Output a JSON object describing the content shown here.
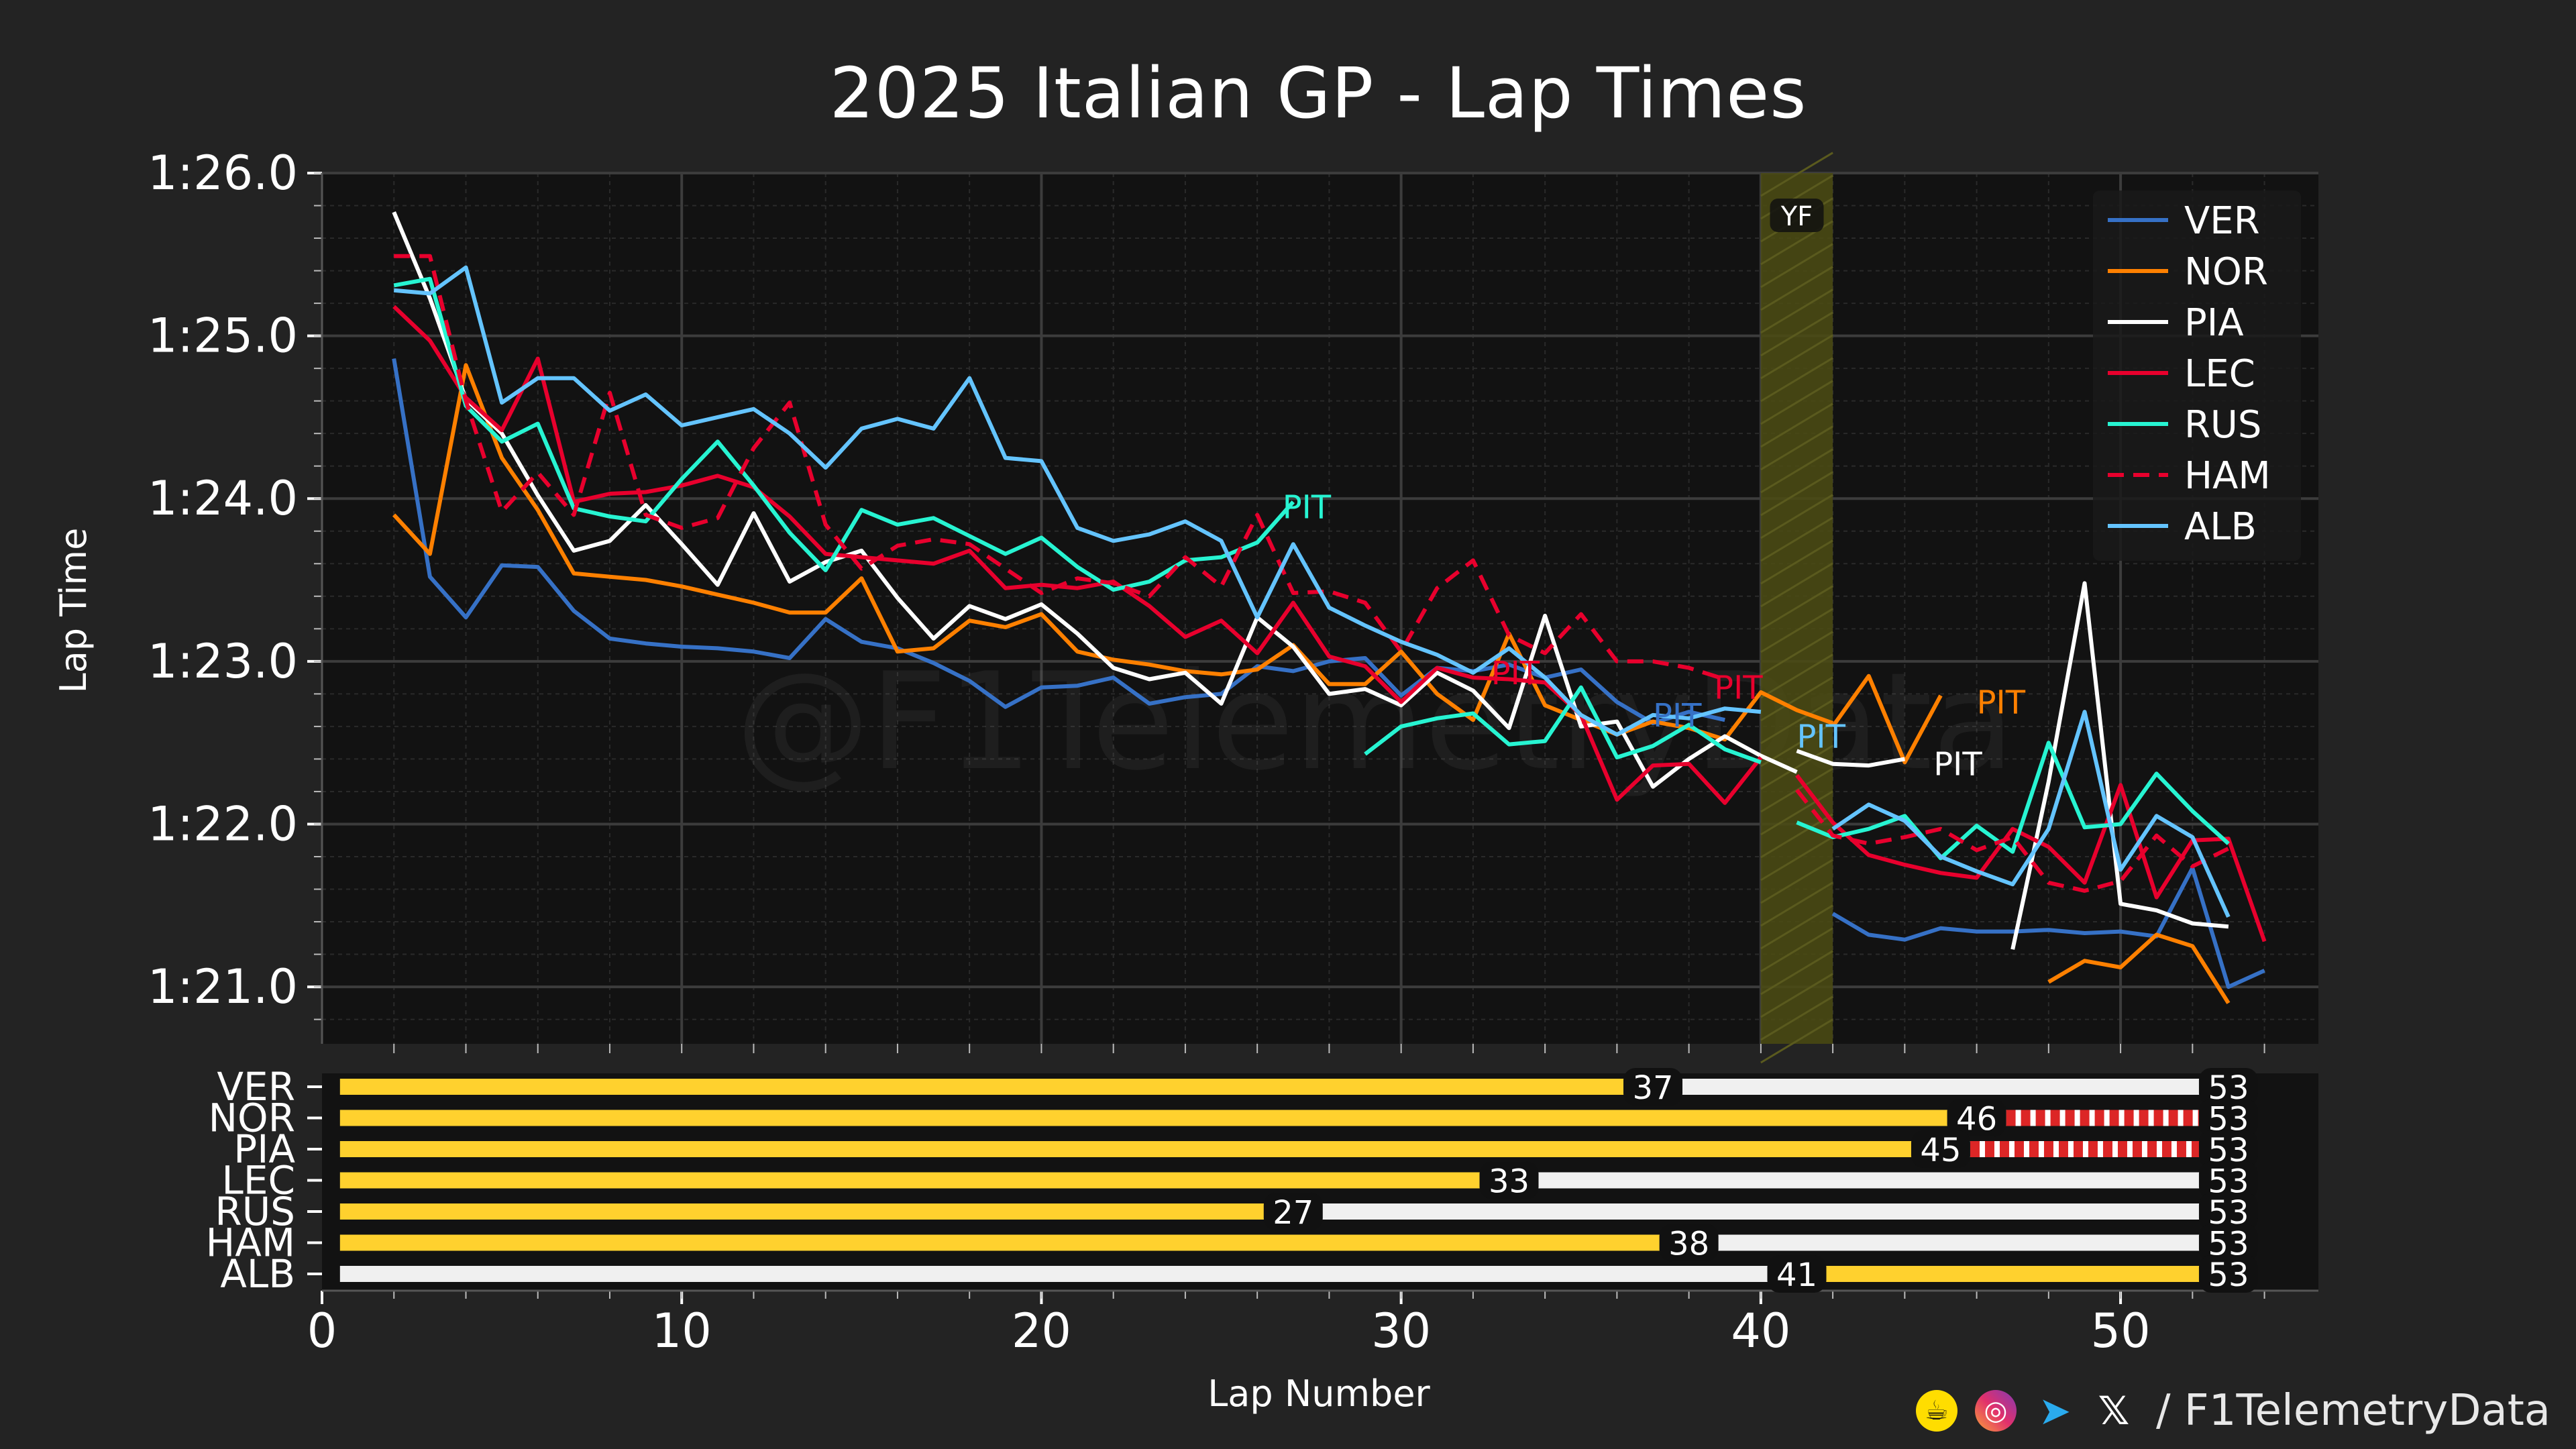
{
  "title": "2025 Italian GP - Lap Times",
  "footer": {
    "icons": [
      "buymeacoffee-icon",
      "instagram-icon",
      "telegram-icon",
      "x-icon"
    ],
    "handle": "/ F1TelemetryData"
  },
  "watermark": "@F1TelemetryData",
  "colors": {
    "background": "#232323",
    "plot_bg": "#121212",
    "VER": "#3671C6",
    "NOR": "#FF8000",
    "PIA": "#FFFFFF",
    "LEC": "#E8002D",
    "RUS": "#27F4D2",
    "HAM": "#E8002D",
    "ALB": "#64C4FF",
    "yellow_flag": "#4a4a14",
    "stint_a": "#FFD12E",
    "stint_b": "#F0F0F0",
    "stint_c": "#DC2626"
  },
  "chart_data": [
    {
      "type": "line",
      "title": "2025 Italian GP - Lap Times",
      "xlabel": "Lap Number",
      "ylabel": "Lap Time",
      "xlim": [
        0,
        55.5
      ],
      "ylim": [
        80.65,
        86.0
      ],
      "yticks": [
        {
          "value": 81,
          "label": "1:21.0"
        },
        {
          "value": 82,
          "label": "1:22.0"
        },
        {
          "value": 83,
          "label": "1:23.0"
        },
        {
          "value": 84,
          "label": "1:24.0"
        },
        {
          "value": 85,
          "label": "1:25.0"
        },
        {
          "value": 86,
          "label": "1:26.0"
        }
      ],
      "xticks": [
        0,
        10,
        20,
        30,
        40,
        50
      ],
      "grid": true,
      "legend_position": "top-right",
      "shaded_regions": [
        {
          "label": "YF",
          "from": 40,
          "to": 42
        }
      ],
      "series": [
        {
          "name": "VER",
          "style": "solid",
          "segments": [
            {
              "start": 2,
              "values": [
                84.86,
                83.52,
                83.27,
                83.59,
                83.58,
                83.31,
                83.14,
                83.11,
                83.09,
                83.08,
                83.06,
                83.02,
                83.26,
                83.12,
                83.08,
                82.99,
                82.88,
                82.72,
                82.84,
                82.85,
                82.9,
                82.74,
                82.78,
                82.8,
                82.97,
                82.94,
                83.0,
                83.02,
                82.79,
                82.96,
                82.94,
                82.98,
                82.9,
                82.95,
                82.75,
                82.62,
                82.69,
                82.64
              ]
            },
            {
              "start": 42,
              "values": [
                81.45,
                81.32,
                81.29,
                81.36,
                81.34,
                81.34,
                81.35,
                81.33,
                81.34,
                81.31,
                81.73,
                81.0,
                81.1
              ]
            }
          ]
        },
        {
          "name": "NOR",
          "style": "solid",
          "segments": [
            {
              "start": 2,
              "values": [
                83.9,
                83.66,
                84.82,
                84.25,
                83.93,
                83.54,
                83.52,
                83.5,
                83.46,
                83.41,
                83.36,
                83.3,
                83.3,
                83.51,
                83.06,
                83.08,
                83.25,
                83.21,
                83.29,
                83.06,
                83.01,
                82.98,
                82.94,
                82.92,
                82.95,
                83.1,
                82.86,
                82.86,
                83.06,
                82.8,
                82.64,
                83.17,
                82.73,
                82.64,
                82.55,
                82.63,
                82.59,
                82.52,
                82.81,
                82.7,
                82.62
              ]
            },
            {
              "start": 42,
              "values": [
                82.6,
                82.91,
                82.38,
                82.79
              ]
            },
            {
              "start": 48,
              "values": [
                81.03,
                81.16,
                81.12,
                81.32,
                81.25,
                80.9
              ]
            }
          ]
        },
        {
          "name": "PIA",
          "style": "solid",
          "segments": [
            {
              "start": 2,
              "values": [
                85.76,
                85.23,
                84.61,
                84.4,
                84.02,
                83.68,
                83.74,
                83.96,
                83.72,
                83.47,
                83.91,
                83.49,
                83.61,
                83.68,
                83.39,
                83.14,
                83.34,
                83.26,
                83.35,
                83.17,
                82.96,
                82.89,
                82.93,
                82.74,
                83.27,
                83.09,
                82.8,
                82.83,
                82.73,
                82.93,
                82.82,
                82.59,
                83.28,
                82.6,
                82.63,
                82.23,
                82.4,
                82.54,
                82.42,
                82.32
              ]
            },
            {
              "start": 41,
              "values": [
                82.45,
                82.37,
                82.36,
                82.4
              ]
            },
            {
              "start": 47,
              "values": [
                81.23,
                82.26,
                83.48,
                81.51,
                81.47,
                81.39,
                81.37
              ]
            }
          ]
        },
        {
          "name": "LEC",
          "style": "solid",
          "segments": [
            {
              "start": 2,
              "values": [
                85.18,
                84.97,
                84.62,
                84.42,
                84.86,
                83.98,
                84.03,
                84.04,
                84.08,
                84.14,
                84.07,
                83.89,
                83.66,
                83.64,
                83.62,
                83.6,
                83.68,
                83.45,
                83.47,
                83.45,
                83.49,
                83.34,
                83.15,
                83.25,
                83.05,
                83.36,
                83.03,
                82.97,
                82.75,
                82.96,
                82.9,
                82.89,
                82.87,
                82.67,
                82.15,
                82.36,
                82.37,
                82.13,
                82.41
              ]
            },
            {
              "start": 41,
              "values": [
                82.3,
                82.01,
                81.81,
                81.75,
                81.7,
                81.67,
                81.97,
                81.86,
                81.64,
                82.24,
                81.55,
                81.9,
                81.91,
                81.28
              ]
            }
          ]
        },
        {
          "name": "RUS",
          "style": "solid",
          "segments": [
            {
              "start": 2,
              "values": [
                85.31,
                85.35,
                84.57,
                84.35,
                84.46,
                83.94,
                83.89,
                83.86,
                84.12,
                84.35,
                84.08,
                83.79,
                83.56,
                83.93,
                83.84,
                83.88,
                83.77,
                83.66,
                83.76,
                83.58,
                83.44,
                83.49,
                83.62,
                83.64,
                83.73,
                83.98
              ]
            },
            {
              "start": 29,
              "values": [
                82.43,
                82.6,
                82.65,
                82.68,
                82.49,
                82.51,
                82.84,
                82.41,
                82.48,
                82.61,
                82.46,
                82.38
              ]
            },
            {
              "start": 41,
              "values": [
                82.01,
                81.92,
                81.97,
                82.05,
                81.79,
                81.99,
                81.83,
                82.5,
                81.98,
                82.0,
                82.31,
                82.08,
                81.88
              ]
            }
          ]
        },
        {
          "name": "HAM",
          "style": "dashed",
          "segments": [
            {
              "start": 2,
              "values": [
                85.49,
                85.49,
                84.6,
                83.92,
                84.16,
                83.9,
                84.65,
                83.9,
                83.82,
                83.88,
                84.31,
                84.59,
                83.84,
                83.57,
                83.71,
                83.75,
                83.72,
                83.57,
                83.42,
                83.51,
                83.48,
                83.4,
                83.64,
                83.46,
                83.9,
                83.42,
                83.43,
                83.36,
                83.06,
                83.45,
                83.62,
                83.16,
                83.05,
                83.29,
                83.0,
                83.0,
                82.96,
                82.89
              ]
            },
            {
              "start": 41,
              "values": [
                82.21,
                81.93,
                81.88,
                81.92,
                81.97,
                81.84,
                81.92,
                81.64,
                81.59,
                81.65,
                81.93,
                81.74,
                81.85
              ]
            }
          ]
        },
        {
          "name": "ALB",
          "style": "solid",
          "segments": [
            {
              "start": 2,
              "values": [
                85.28,
                85.26,
                85.42,
                84.59,
                84.74,
                84.74,
                84.54,
                84.64,
                84.45,
                84.5,
                84.55,
                84.4,
                84.19,
                84.43,
                84.49,
                84.43,
                84.74,
                84.25,
                84.23,
                83.82,
                83.74,
                83.78,
                83.86,
                83.74,
                83.27,
                83.72,
                83.33,
                83.22,
                83.12,
                83.04,
                82.93,
                83.08,
                82.9,
                82.67,
                82.55,
                82.67,
                82.65,
                82.71,
                82.69
              ]
            },
            {
              "start": 42,
              "values": [
                81.97,
                82.12,
                82.02,
                81.8,
                81.71,
                81.63,
                81.97,
                82.69,
                81.72,
                82.05,
                81.92,
                81.43
              ]
            }
          ]
        }
      ],
      "annotations": [
        {
          "text": "PIT",
          "driver": "RUS",
          "x": 26.7,
          "y": 83.88
        },
        {
          "text": "PIT",
          "driver": "LEC",
          "x": 32.5,
          "y": 82.86
        },
        {
          "text": "PIT",
          "driver": "LEC",
          "x": 38.7,
          "y": 82.77
        },
        {
          "text": "PIT",
          "driver": "VER",
          "x": 37.0,
          "y": 82.6
        },
        {
          "text": "PIT",
          "driver": "ALB",
          "x": 41.0,
          "y": 82.47
        },
        {
          "text": "PIT",
          "driver": "NOR",
          "x": 46.0,
          "y": 82.68
        },
        {
          "text": "PIT",
          "driver": "PIA",
          "x": 44.8,
          "y": 82.3
        }
      ]
    },
    {
      "type": "bar",
      "title": "Tyre stints",
      "xlabel": "Lap Number",
      "xlim": [
        0,
        55.5
      ],
      "categories": [
        "VER",
        "NOR",
        "PIA",
        "LEC",
        "RUS",
        "HAM",
        "ALB"
      ],
      "stints": [
        {
          "driver": "VER",
          "segments": [
            {
              "from": 0.5,
              "to": 37,
              "color": "stint_a"
            },
            {
              "from": 37,
              "to": 53,
              "color": "stint_b"
            }
          ],
          "labels": [
            "37",
            "53"
          ]
        },
        {
          "driver": "NOR",
          "segments": [
            {
              "from": 0.5,
              "to": 46,
              "color": "stint_a"
            },
            {
              "from": 46,
              "to": 53,
              "color": "stint_c",
              "style": "dashed"
            }
          ],
          "labels": [
            "46",
            "53"
          ]
        },
        {
          "driver": "PIA",
          "segments": [
            {
              "from": 0.5,
              "to": 45,
              "color": "stint_a"
            },
            {
              "from": 45,
              "to": 53,
              "color": "stint_c",
              "style": "dashed"
            }
          ],
          "labels": [
            "45",
            "53"
          ]
        },
        {
          "driver": "LEC",
          "segments": [
            {
              "from": 0.5,
              "to": 33,
              "color": "stint_a"
            },
            {
              "from": 33,
              "to": 53,
              "color": "stint_b"
            }
          ],
          "labels": [
            "33",
            "53"
          ]
        },
        {
          "driver": "RUS",
          "segments": [
            {
              "from": 0.5,
              "to": 27,
              "color": "stint_a"
            },
            {
              "from": 27,
              "to": 53,
              "color": "stint_b"
            }
          ],
          "labels": [
            "27",
            "53"
          ]
        },
        {
          "driver": "HAM",
          "segments": [
            {
              "from": 0.5,
              "to": 38,
              "color": "stint_a"
            },
            {
              "from": 38,
              "to": 53,
              "color": "stint_b"
            }
          ],
          "labels": [
            "38",
            "53"
          ]
        },
        {
          "driver": "ALB",
          "segments": [
            {
              "from": 0.5,
              "to": 41,
              "color": "stint_b"
            },
            {
              "from": 41,
              "to": 53,
              "color": "stint_a"
            }
          ],
          "labels": [
            "41",
            "53"
          ]
        }
      ]
    }
  ]
}
